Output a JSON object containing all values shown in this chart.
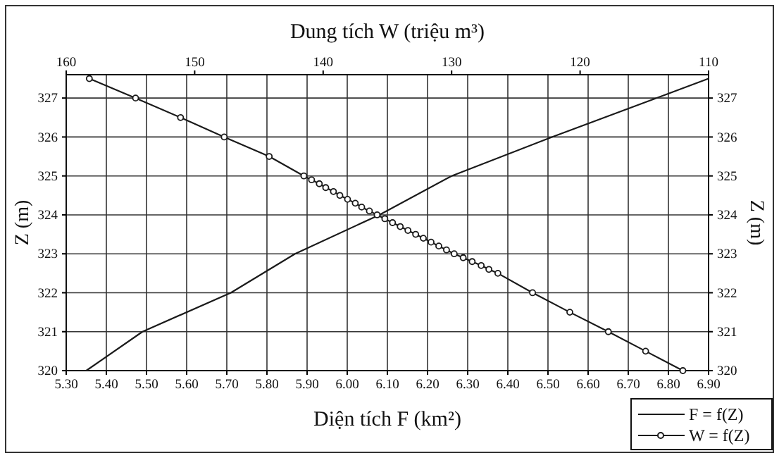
{
  "chart_data": {
    "type": "line",
    "xlabel": "Diện tích F (km²)",
    "x2label": "Dung tích W (triệu m³)",
    "ylabel": "Z (m)",
    "y2label": "Z (m)",
    "xlim": [
      5.3,
      6.9
    ],
    "xticks": [
      {
        "value": 5.3,
        "label": "5.30"
      },
      {
        "value": 5.4,
        "label": "5.40"
      },
      {
        "value": 5.5,
        "label": "5.50"
      },
      {
        "value": 5.6,
        "label": "5.60"
      },
      {
        "value": 5.7,
        "label": "5.70"
      },
      {
        "value": 5.8,
        "label": "5.80"
      },
      {
        "value": 5.9,
        "label": "5.90"
      },
      {
        "value": 6.0,
        "label": "6.00"
      },
      {
        "value": 6.1,
        "label": "6.10"
      },
      {
        "value": 6.2,
        "label": "6.20"
      },
      {
        "value": 6.3,
        "label": "6.30"
      },
      {
        "value": 6.4,
        "label": "6.40"
      },
      {
        "value": 6.5,
        "label": "6.50"
      },
      {
        "value": 6.6,
        "label": "6.60"
      },
      {
        "value": 6.7,
        "label": "6.70"
      },
      {
        "value": 6.8,
        "label": "6.80"
      },
      {
        "value": 6.9,
        "label": "6.90"
      }
    ],
    "x2lim": [
      160,
      110
    ],
    "x2ticks": [
      160,
      150,
      140,
      130,
      120,
      110
    ],
    "ylim": [
      320,
      327.6
    ],
    "yticks": [
      320,
      321,
      322,
      323,
      324,
      325,
      326,
      327
    ],
    "y2lim": [
      320,
      327.6
    ],
    "y2ticks": [
      320,
      321,
      322,
      323,
      324,
      325,
      326,
      327
    ],
    "grid": true,
    "legend": "bottom right",
    "series": [
      {
        "name": "F = f(Z)",
        "color": "#1a1a1a",
        "marker": "none",
        "x": [
          5.35,
          5.49,
          5.71,
          5.87,
          6.08,
          6.26,
          6.51,
          6.77,
          6.9
        ],
        "values": [
          320,
          321,
          322,
          323,
          324,
          325,
          326,
          327,
          327.5
        ]
      },
      {
        "name": "W = f(Z)",
        "color": "#1a1a1a",
        "marker": "circle",
        "axis": "x2",
        "x": [
          158.2,
          154.6,
          151.1,
          147.7,
          144.2,
          141.5,
          140.9,
          140.3,
          139.8,
          139.2,
          138.7,
          138.1,
          137.5,
          137.0,
          136.4,
          135.8,
          135.2,
          134.6,
          134.0,
          133.4,
          132.8,
          132.2,
          131.6,
          131.0,
          130.4,
          129.8,
          129.1,
          128.4,
          127.7,
          127.1,
          126.4,
          123.7,
          120.8,
          117.8,
          114.9,
          112.0
        ],
        "values": [
          327.5,
          327,
          326.5,
          326,
          325.5,
          325,
          324.9,
          324.8,
          324.7,
          324.6,
          324.5,
          324.4,
          324.3,
          324.2,
          324.1,
          324,
          323.9,
          323.8,
          323.7,
          323.6,
          323.5,
          323.4,
          323.3,
          323.2,
          323.1,
          323,
          322.9,
          322.8,
          322.7,
          322.6,
          322.5,
          322,
          321.5,
          321,
          320.5,
          320
        ]
      }
    ]
  }
}
